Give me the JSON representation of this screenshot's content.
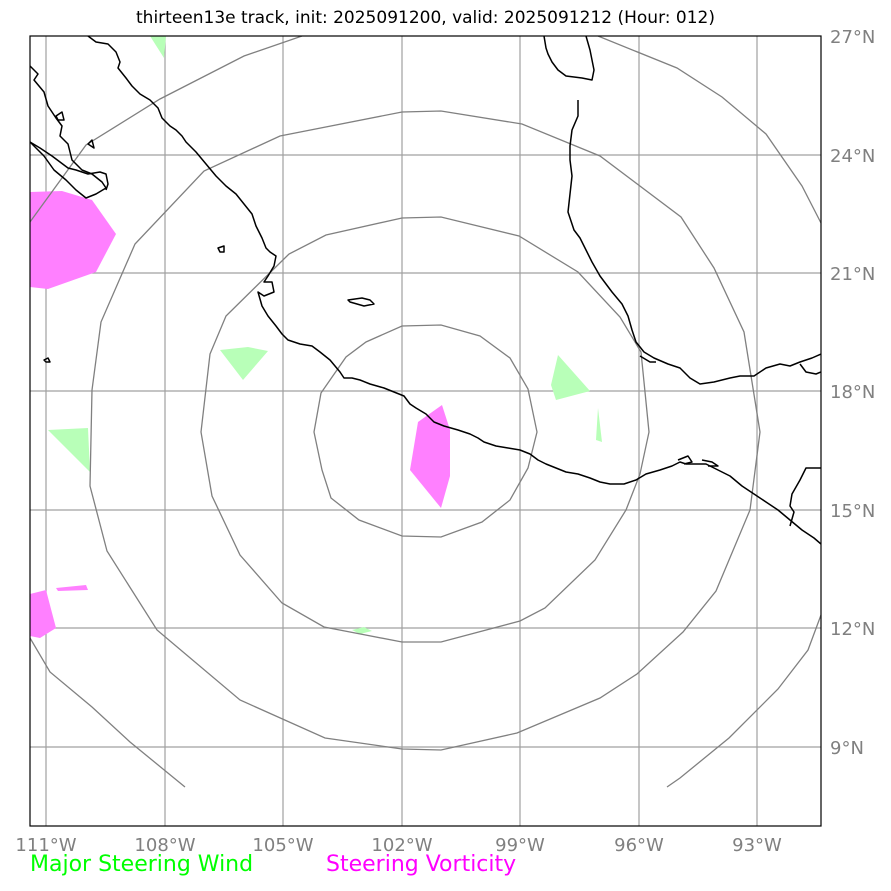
{
  "title": "thirteen13e track, init: 2025091200, valid: 2025091212 (Hour: 012)",
  "latitude_labels": [
    "27°N",
    "24°N",
    "21°N",
    "18°N",
    "15°N",
    "12°N",
    "9°N"
  ],
  "longitude_labels": [
    "111°W",
    "108°W",
    "105°W",
    "102°W",
    "99°W",
    "96°W",
    "93°W"
  ],
  "legend": {
    "wind_label": "Major Steering Wind",
    "vorticity_label": "Steering Vorticity"
  },
  "colors": {
    "wind": "#00ff00",
    "wind_fill": "#b8ffb8",
    "vorticity": "#ff00ff",
    "vorticity_fill": "#ff80ff",
    "gridline": "#a0a0a0",
    "range_ring": "#808080",
    "coastline": "#000000"
  }
}
